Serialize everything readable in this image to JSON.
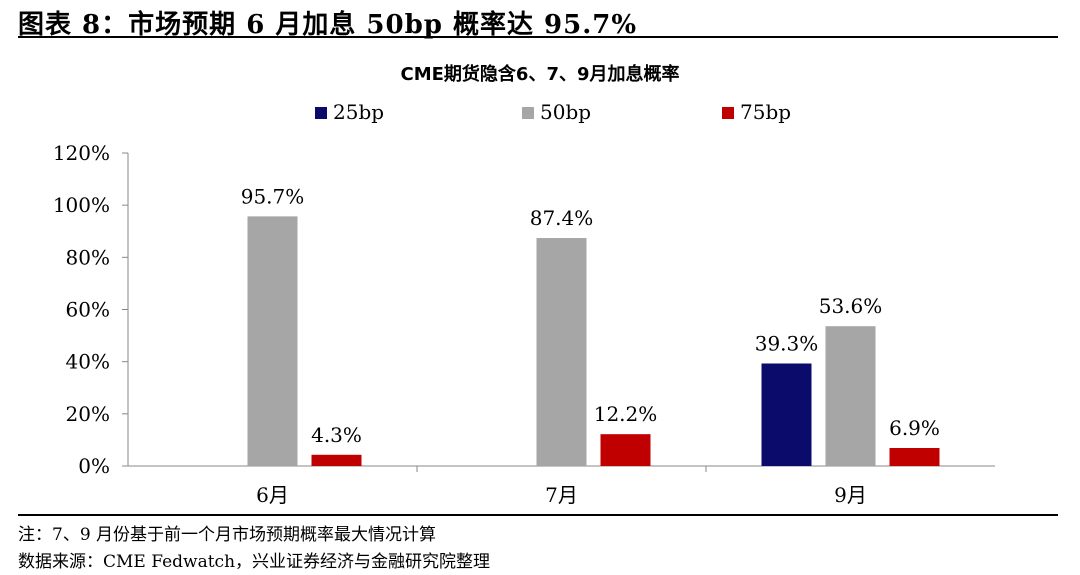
{
  "figure": {
    "title": "图表 8：市场预期 6 月加息 50bp 概率达 95.7%",
    "note": "注：7、9 月份基于前一个月市场预期概率最大情况计算",
    "source": "数据来源：CME Fedwatch，兴业证券经济与金融研究院整理"
  },
  "chart_data": {
    "type": "bar",
    "title": "CME期货隐含6、7、9月加息概率",
    "categories": [
      "6月",
      "7月",
      "9月"
    ],
    "series": [
      {
        "name": "25bp",
        "color": "#0b0b6b",
        "values": [
          0,
          0,
          39.3
        ],
        "labels": [
          "",
          "",
          "39.3%"
        ]
      },
      {
        "name": "50bp",
        "color": "#a6a6a6",
        "values": [
          95.7,
          87.4,
          53.6
        ],
        "labels": [
          "95.7%",
          "87.4%",
          "53.6%"
        ]
      },
      {
        "name": "75bp",
        "color": "#c00000",
        "values": [
          4.3,
          12.2,
          6.9
        ],
        "labels": [
          "4.3%",
          "12.2%",
          "6.9%"
        ]
      }
    ],
    "y_ticks": [
      "0%",
      "20%",
      "40%",
      "60%",
      "80%",
      "100%",
      "120%"
    ],
    "ylim": [
      0,
      120
    ],
    "y_unit": "%",
    "legend_position": "top",
    "grid": false
  }
}
